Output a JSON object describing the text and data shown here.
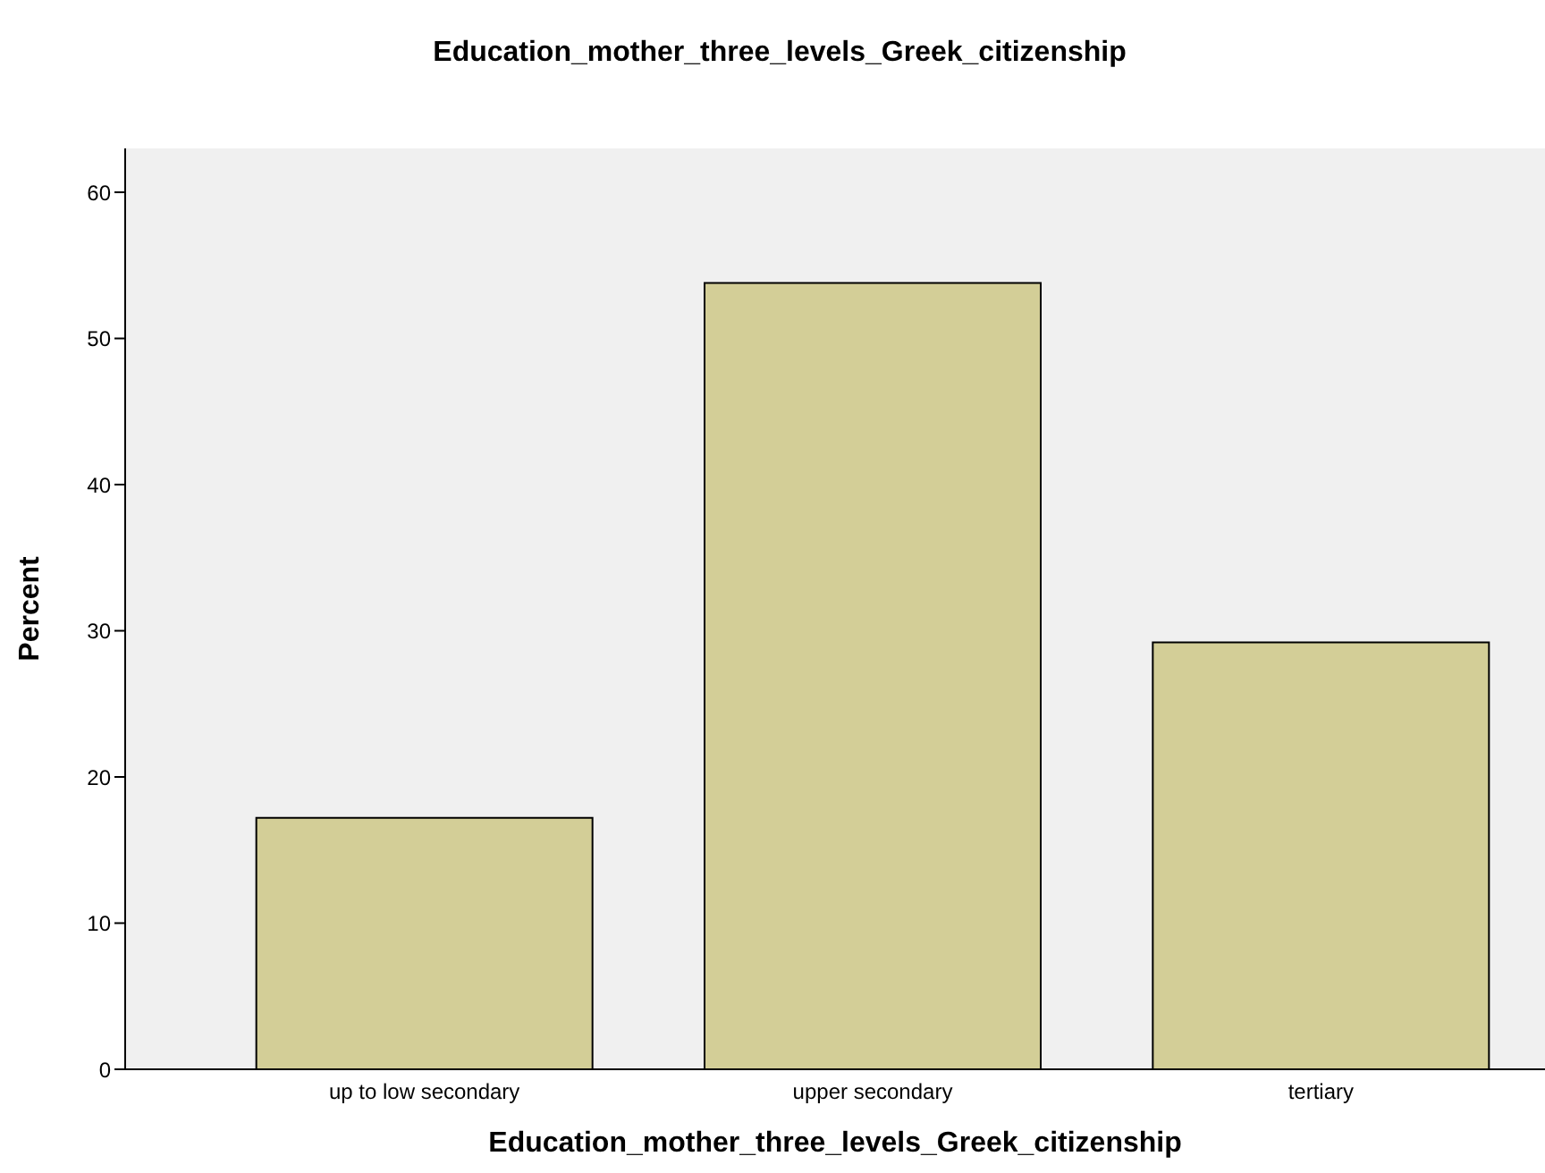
{
  "chart_data": {
    "type": "bar",
    "title": "Education_mother_three_levels_Greek_citizenship",
    "xlabel": "Education_mother_three_levels_Greek_citizenship",
    "ylabel": "Percent",
    "categories": [
      "up to low secondary",
      "upper secondary",
      "tertiary"
    ],
    "values": [
      17.2,
      53.8,
      29.2
    ],
    "color": "#d3ce97",
    "ylim": [
      0,
      63
    ],
    "yticks": [
      0,
      10,
      20,
      30,
      40,
      50,
      60
    ],
    "grid": false
  }
}
